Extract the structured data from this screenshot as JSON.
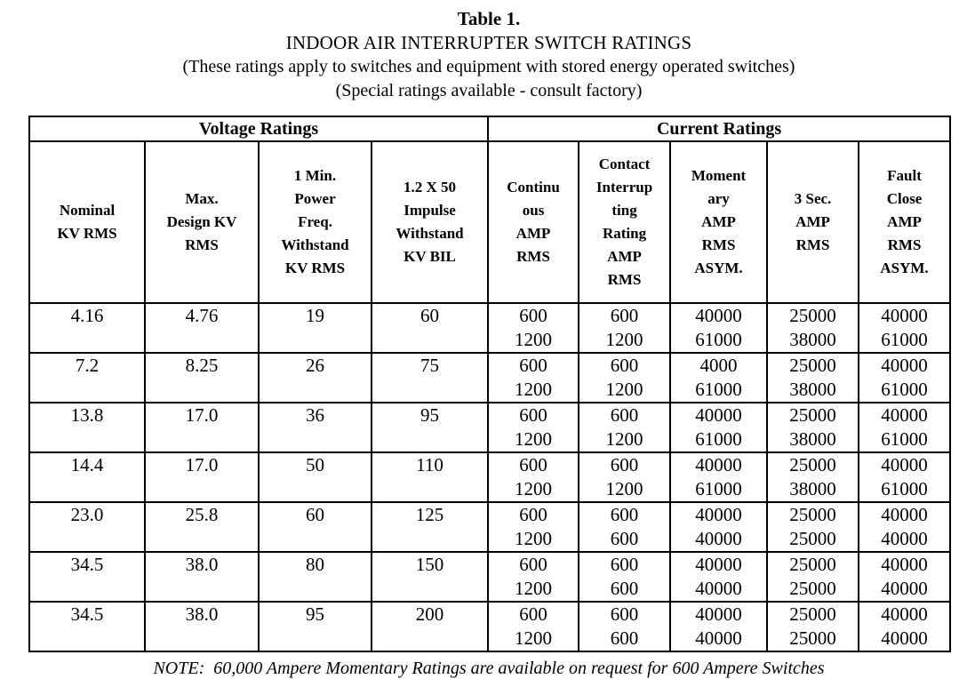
{
  "title": {
    "line1": "Table 1.",
    "line2": "INDOOR AIR INTERRUPTER SWITCH RATINGS",
    "line3": "(These ratings apply to switches and equipment with stored energy operated switches)",
    "line4": "(Special ratings available - consult factory)"
  },
  "table": {
    "group_headers": [
      {
        "label": "Voltage Ratings",
        "colspan": 4
      },
      {
        "label": "Current Ratings",
        "colspan": 5
      }
    ],
    "columns": [
      {
        "id": "nominal-kv-rms",
        "lines": [
          "Nominal",
          "KV RMS"
        ]
      },
      {
        "id": "max-design-kv-rms",
        "lines": [
          "Max.",
          "Design KV",
          "RMS"
        ]
      },
      {
        "id": "1-min-power-freq-withstand-kv-rms",
        "lines": [
          "1 Min.",
          "Power",
          "Freq.",
          "Withstand",
          "KV RMS"
        ]
      },
      {
        "id": "1-2-x-50-impulse-withstand-kv-bil",
        "lines": [
          "1.2 X 50",
          "Impulse",
          "Withstand",
          "KV BIL"
        ]
      },
      {
        "id": "continuous-amp-rms",
        "lines": [
          "Continu",
          "ous",
          "AMP",
          "RMS"
        ]
      },
      {
        "id": "contact-interrupting-rating-amp-rms",
        "lines": [
          "Contact",
          "Interrup",
          "ting",
          "Rating",
          "AMP",
          "RMS"
        ]
      },
      {
        "id": "momentary-amp-rms-asym",
        "lines": [
          "Moment",
          "ary",
          "AMP",
          "RMS",
          "ASYM."
        ]
      },
      {
        "id": "3-sec-amp-rms",
        "lines": [
          "3 Sec.",
          "AMP",
          "RMS"
        ]
      },
      {
        "id": "fault-close-amp-rms-asym",
        "lines": [
          "Fault",
          "Close",
          "AMP",
          "RMS",
          "ASYM."
        ]
      }
    ],
    "rows": [
      {
        "cells": [
          [
            "4.16"
          ],
          [
            "4.76"
          ],
          [
            "19"
          ],
          [
            "60"
          ],
          [
            "600",
            "1200"
          ],
          [
            "600",
            "1200"
          ],
          [
            "40000",
            "61000"
          ],
          [
            "25000",
            "38000"
          ],
          [
            "40000",
            "61000"
          ]
        ]
      },
      {
        "cells": [
          [
            "7.2"
          ],
          [
            "8.25"
          ],
          [
            "26"
          ],
          [
            "75"
          ],
          [
            "600",
            "1200"
          ],
          [
            "600",
            "1200"
          ],
          [
            "4000",
            "61000"
          ],
          [
            "25000",
            "38000"
          ],
          [
            "40000",
            "61000"
          ]
        ]
      },
      {
        "cells": [
          [
            "13.8"
          ],
          [
            "17.0"
          ],
          [
            "36"
          ],
          [
            "95"
          ],
          [
            "600",
            "1200"
          ],
          [
            "600",
            "1200"
          ],
          [
            "40000",
            "61000"
          ],
          [
            "25000",
            "38000"
          ],
          [
            "40000",
            "61000"
          ]
        ]
      },
      {
        "cells": [
          [
            "14.4"
          ],
          [
            "17.0"
          ],
          [
            "50"
          ],
          [
            "110"
          ],
          [
            "600",
            "1200"
          ],
          [
            "600",
            "1200"
          ],
          [
            "40000",
            "61000"
          ],
          [
            "25000",
            "38000"
          ],
          [
            "40000",
            "61000"
          ]
        ]
      },
      {
        "cells": [
          [
            "23.0"
          ],
          [
            "25.8"
          ],
          [
            "60"
          ],
          [
            "125"
          ],
          [
            "600",
            "1200"
          ],
          [
            "600",
            "600"
          ],
          [
            "40000",
            "40000"
          ],
          [
            "25000",
            "25000"
          ],
          [
            "40000",
            "40000"
          ]
        ]
      },
      {
        "cells": [
          [
            "34.5"
          ],
          [
            "38.0"
          ],
          [
            "80"
          ],
          [
            "150"
          ],
          [
            "600",
            "1200"
          ],
          [
            "600",
            "600"
          ],
          [
            "40000",
            "40000"
          ],
          [
            "25000",
            "25000"
          ],
          [
            "40000",
            "40000"
          ]
        ]
      },
      {
        "cells": [
          [
            "34.5"
          ],
          [
            "38.0"
          ],
          [
            "95"
          ],
          [
            "200"
          ],
          [
            "600",
            "1200"
          ],
          [
            "600",
            "600"
          ],
          [
            "40000",
            "40000"
          ],
          [
            "25000",
            "25000"
          ],
          [
            "40000",
            "40000"
          ]
        ]
      }
    ]
  },
  "note": "NOTE:  60,000 Ampere Momentary Ratings are available on request for 600 Ampere Switches",
  "colors": {
    "text": "#000000",
    "background": "#ffffff",
    "border": "#000000"
  }
}
